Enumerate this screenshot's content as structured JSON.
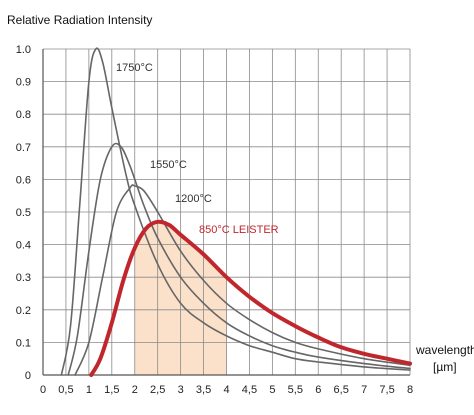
{
  "chart_data": {
    "type": "line",
    "ylabel": "Relative Radiation Intensity",
    "xlabel": "wavelength",
    "xunit": "[µm]",
    "xlim": [
      0,
      8
    ],
    "ylim": [
      0,
      1.0
    ],
    "x_ticks": [
      "0",
      "0,5",
      "1",
      "1,5",
      "2",
      "2,5",
      "3",
      "3,5",
      "4",
      "4,5",
      "5",
      "5,5",
      "6",
      "6,5",
      "7",
      "7,5",
      "8"
    ],
    "y_ticks": [
      "0",
      "0.1",
      "0.2",
      "0.3",
      "0.4",
      "0.5",
      "0.6",
      "0.7",
      "0.8",
      "0.9",
      "1.0"
    ],
    "grid": true,
    "highlight_band": {
      "from": 2.0,
      "to": 4.0,
      "color": "#fbe1c9"
    },
    "series": [
      {
        "name": "1750°C",
        "color": "#666666",
        "x": [
          0.4,
          0.6,
          0.8,
          1.0,
          1.15,
          1.3,
          1.5,
          1.8,
          2.0,
          2.5,
          3.0,
          3.5,
          4.0,
          4.5,
          5.0,
          5.5,
          6.0,
          7.0,
          8.0
        ],
        "y": [
          0.0,
          0.15,
          0.52,
          0.9,
          1.0,
          0.96,
          0.82,
          0.62,
          0.52,
          0.34,
          0.22,
          0.16,
          0.12,
          0.09,
          0.07,
          0.05,
          0.04,
          0.025,
          0.015
        ]
      },
      {
        "name": "1550°C",
        "color": "#666666",
        "x": [
          0.55,
          0.75,
          1.0,
          1.25,
          1.5,
          1.7,
          1.9,
          2.2,
          2.5,
          3.0,
          3.5,
          4.0,
          4.5,
          5.0,
          5.5,
          6.0,
          7.0,
          8.0
        ],
        "y": [
          0.0,
          0.12,
          0.38,
          0.6,
          0.7,
          0.7,
          0.64,
          0.52,
          0.42,
          0.3,
          0.22,
          0.16,
          0.12,
          0.09,
          0.07,
          0.055,
          0.035,
          0.02
        ]
      },
      {
        "name": "1200°C",
        "color": "#666666",
        "x": [
          0.7,
          1.0,
          1.3,
          1.6,
          1.9,
          2.0,
          2.2,
          2.5,
          3.0,
          3.5,
          4.0,
          4.5,
          5.0,
          5.5,
          6.0,
          7.0,
          8.0
        ],
        "y": [
          0.0,
          0.1,
          0.3,
          0.5,
          0.575,
          0.58,
          0.565,
          0.5,
          0.38,
          0.29,
          0.22,
          0.17,
          0.13,
          0.1,
          0.08,
          0.05,
          0.03
        ]
      },
      {
        "name": "850°C LEISTER",
        "color": "#c0272d",
        "x": [
          1.05,
          1.25,
          1.5,
          1.75,
          2.0,
          2.25,
          2.5,
          2.75,
          3.0,
          3.5,
          4.0,
          4.5,
          5.0,
          5.5,
          6.0,
          6.5,
          7.0,
          7.5,
          8.0
        ],
        "y": [
          0.0,
          0.05,
          0.16,
          0.29,
          0.39,
          0.45,
          0.47,
          0.46,
          0.43,
          0.37,
          0.3,
          0.24,
          0.19,
          0.15,
          0.115,
          0.085,
          0.065,
          0.05,
          0.035
        ]
      }
    ]
  }
}
